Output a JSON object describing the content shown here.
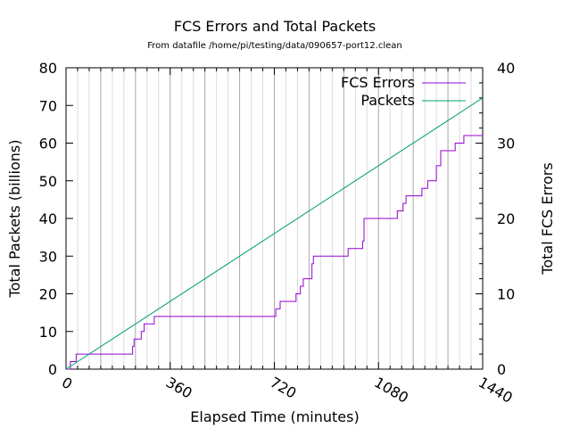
{
  "chart_data": {
    "type": "line",
    "title": "FCS Errors and Total Packets",
    "subtitle": "From datafile /home/pi/testing/data/090657-port12.clean",
    "xlabel": "Elapsed Time (minutes)",
    "ylabel_left": "Total Packets (billions)",
    "ylabel_right": "Total FCS Errors",
    "xlim": [
      0,
      1440
    ],
    "ylim_left": [
      0,
      80
    ],
    "ylim_right": [
      0,
      40
    ],
    "x_ticks": [
      "0",
      "360",
      "720",
      "1080",
      "1440"
    ],
    "y_left_ticks": [
      "0",
      "10",
      "20",
      "30",
      "40",
      "50",
      "60",
      "70",
      "80"
    ],
    "y_right_ticks": [
      "0",
      "10",
      "20",
      "30",
      "40"
    ],
    "legend_position": "top-right",
    "grid": true,
    "series": [
      {
        "name": "FCS Errors",
        "axis": "right",
        "color": "#9400d3",
        "style": "step",
        "x": [
          0,
          15,
          35,
          215,
          230,
          235,
          260,
          270,
          305,
          710,
          725,
          740,
          795,
          810,
          820,
          850,
          855,
          955,
          975,
          1025,
          1030,
          1145,
          1165,
          1175,
          1230,
          1250,
          1280,
          1295,
          1345,
          1375,
          1440
        ],
        "y": [
          0,
          1,
          2,
          2,
          3,
          4,
          5,
          6,
          7,
          7,
          8,
          9,
          10,
          11,
          12,
          14,
          15,
          15,
          16,
          17,
          20,
          21,
          22,
          23,
          24,
          25,
          27,
          29,
          30,
          31,
          31
        ]
      },
      {
        "name": "Packets",
        "axis": "left",
        "color": "#009e73",
        "x": [
          0,
          1440
        ],
        "y": [
          0,
          72
        ]
      }
    ]
  }
}
